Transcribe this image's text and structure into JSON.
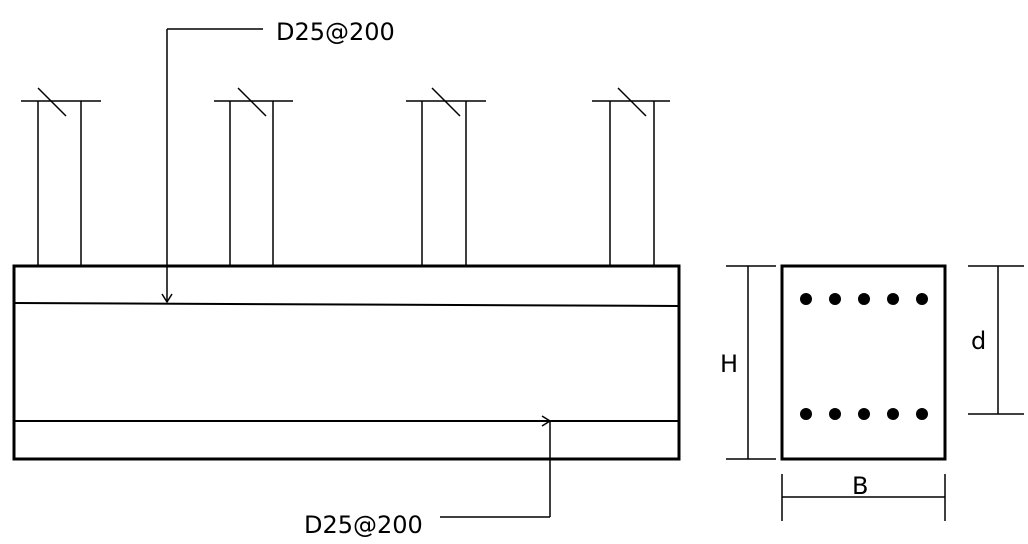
{
  "labels": {
    "top_rebar": "D25@200",
    "bottom_rebar": "D25@200",
    "height": "H",
    "effective_depth": "d",
    "width": "B"
  },
  "section": {
    "top_bar_count": 5,
    "bottom_bar_count": 5
  },
  "column_count": 4,
  "colors": {
    "line": "#000000",
    "background": "#ffffff"
  }
}
